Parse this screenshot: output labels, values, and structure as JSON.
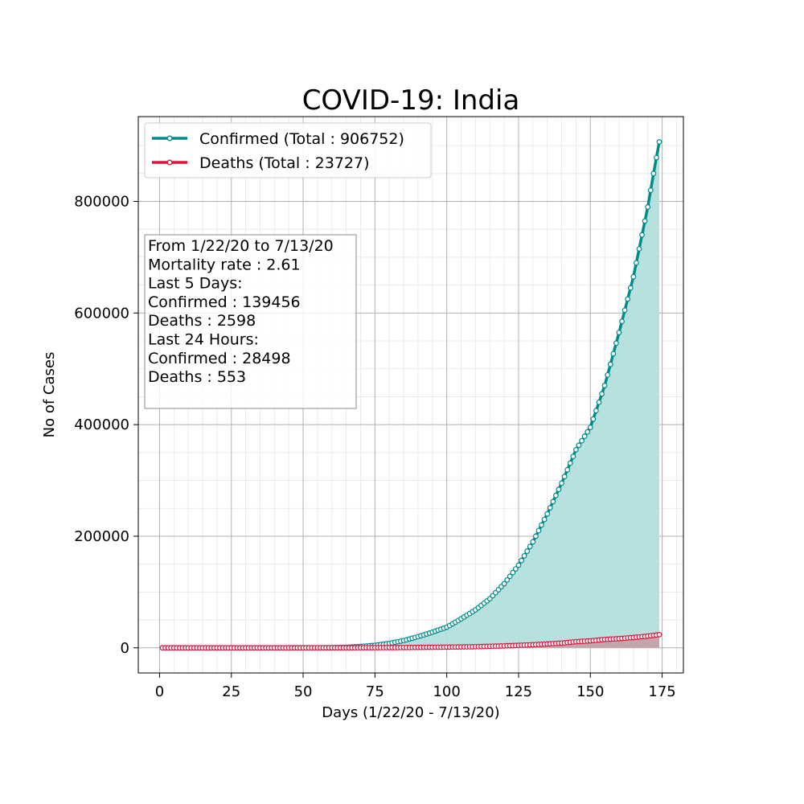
{
  "chart_data": {
    "type": "line",
    "title": "COVID-19: India",
    "xlabel": "Days (1/22/20 - 7/13/20)",
    "ylabel": "No of Cases",
    "xlim": [
      -7.4,
      182.4
    ],
    "ylim": [
      -45000,
      952000
    ],
    "x_ticks": [
      "0",
      "25",
      "50",
      "75",
      "100",
      "125",
      "150",
      "175"
    ],
    "y_ticks": [
      "0",
      "200000",
      "400000",
      "600000",
      "800000"
    ],
    "grid": true,
    "legend_position": "top-left",
    "info_box": {
      "lines": [
        "From 1/22/20 to 7/13/20",
        "Mortality rate : 2.61",
        "Last 5 Days:",
        "Confirmed : 139456",
        "Deaths : 2598",
        "Last 24 Hours:",
        "Confirmed : 28498",
        "Deaths : 553"
      ]
    },
    "series": [
      {
        "name": "Confirmed (Total : 906752)",
        "color": "#008b8b",
        "fill": "#b2dfdc",
        "points": [
          [
            1,
            0
          ],
          [
            40,
            0
          ],
          [
            60,
            300
          ],
          [
            65,
            1000
          ],
          [
            70,
            2500
          ],
          [
            75,
            4500
          ],
          [
            80,
            8000
          ],
          [
            85,
            13000
          ],
          [
            90,
            20000
          ],
          [
            95,
            28000
          ],
          [
            100,
            37000
          ],
          [
            105,
            52000
          ],
          [
            110,
            68000
          ],
          [
            115,
            88000
          ],
          [
            120,
            115000
          ],
          [
            125,
            148000
          ],
          [
            130,
            190000
          ],
          [
            135,
            240000
          ],
          [
            140,
            295000
          ],
          [
            145,
            355000
          ],
          [
            150,
            395000
          ],
          [
            155,
            470000
          ],
          [
            160,
            565000
          ],
          [
            165,
            665000
          ],
          [
            170,
            790000
          ],
          [
            172,
            850000
          ],
          [
            174,
            906752
          ]
        ]
      },
      {
        "name": "Deaths (Total : 23727)",
        "color": "#dc143c",
        "fill": "#c79aa3",
        "points": [
          [
            1,
            0
          ],
          [
            50,
            0
          ],
          [
            60,
            50
          ],
          [
            70,
            200
          ],
          [
            80,
            400
          ],
          [
            90,
            800
          ],
          [
            100,
            1300
          ],
          [
            110,
            2000
          ],
          [
            120,
            3500
          ],
          [
            130,
            5500
          ],
          [
            140,
            8500
          ],
          [
            145,
            11000
          ],
          [
            150,
            12500
          ],
          [
            155,
            15000
          ],
          [
            160,
            16500
          ],
          [
            165,
            18500
          ],
          [
            170,
            21000
          ],
          [
            174,
            23727
          ]
        ]
      }
    ]
  }
}
